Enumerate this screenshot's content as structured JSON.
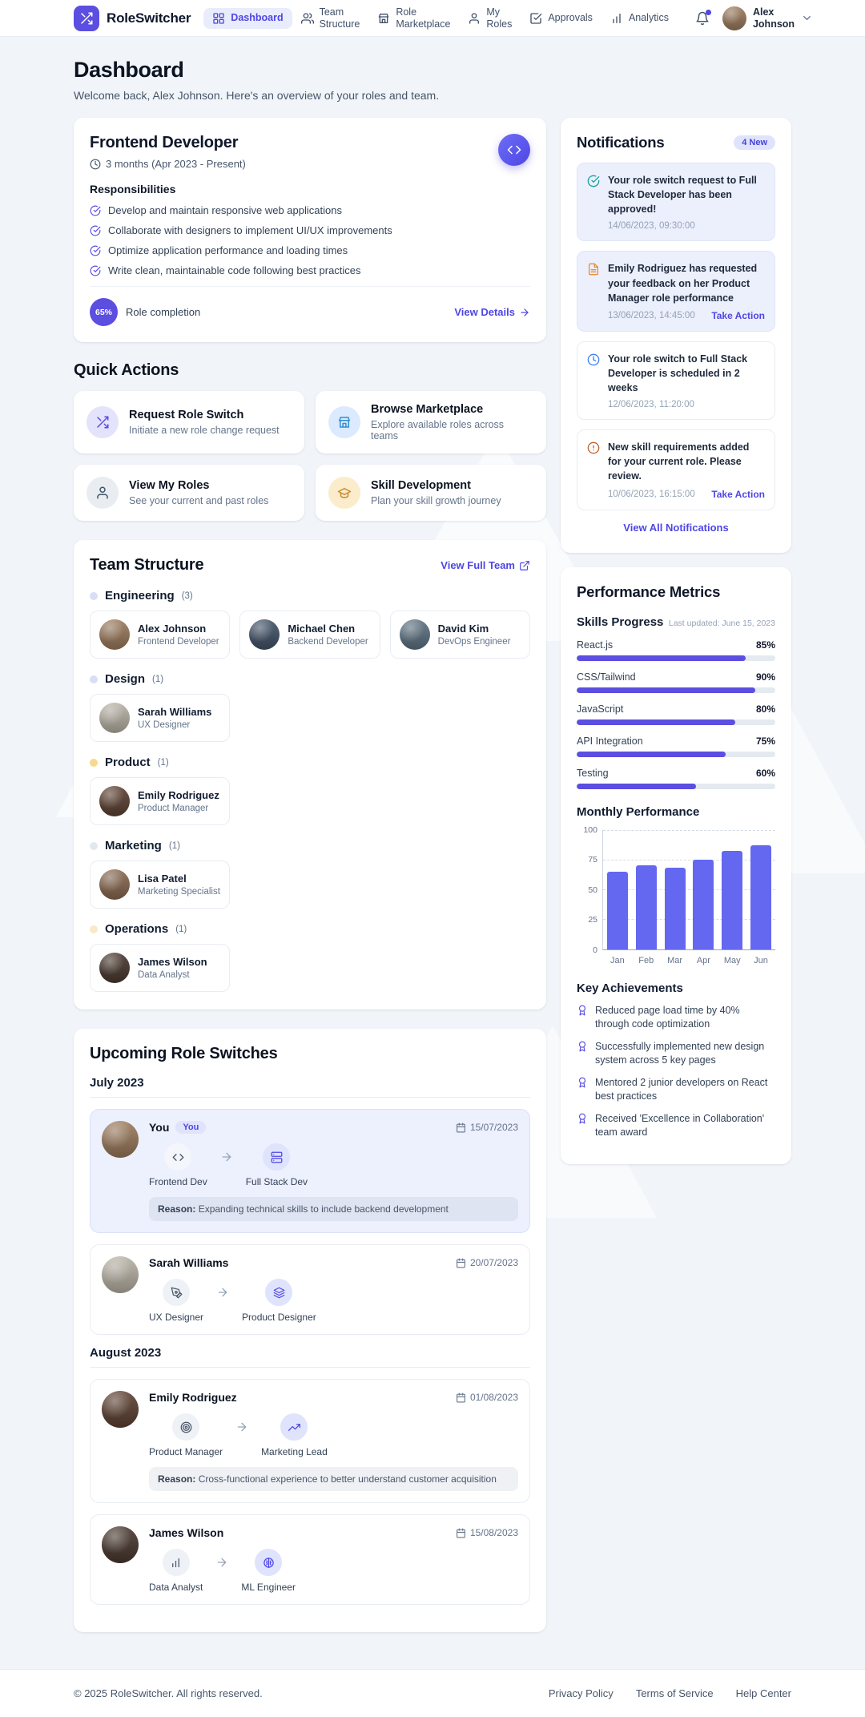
{
  "accent": {
    "primary": "#4f46e5",
    "primary_light": "#eef2ff",
    "progress_fill": "#5b4ee0"
  },
  "brand": {
    "name": "RoleSwitcher",
    "logo_icon": "shuffle"
  },
  "nav": {
    "bell_icon": "bell",
    "chevron_icon": "chevron-down",
    "items": [
      {
        "label": "Dashboard",
        "icon": "grid",
        "active": true
      },
      {
        "label": "Team Structure",
        "icon": "users"
      },
      {
        "label": "Role Marketplace",
        "icon": "store"
      },
      {
        "label": "My Roles",
        "icon": "user"
      },
      {
        "label": "Approvals",
        "icon": "check-square"
      },
      {
        "label": "Analytics",
        "icon": "bar-chart"
      }
    ],
    "user": {
      "name": "Alex Johnson",
      "avatar_color": "#9c7b5d"
    }
  },
  "page": {
    "title": "Dashboard",
    "subtitle": "Welcome back, Alex Johnson. Here's an overview of your roles and team."
  },
  "current_role": {
    "title": "Frontend Developer",
    "duration_icon": "clock",
    "duration": "3 months (Apr 2023 - Present)",
    "header_button_icon": "code",
    "responsibilities_title": "Responsibilities",
    "item_icon": "check-circle",
    "responsibilities": [
      "Develop and maintain responsive web applications",
      "Collaborate with designers to implement UI/UX improvements",
      "Optimize application performance and loading times",
      "Write clean, maintainable code following best practices"
    ],
    "completion_pct": "65%",
    "completion_label": "Role completion",
    "view_details": "View Details",
    "view_details_icon": "arrow-right"
  },
  "quick_actions": {
    "title": "Quick Actions",
    "items": [
      {
        "title": "Request Role Switch",
        "subtitle": "Initiate a new role change request",
        "icon": "shuffle",
        "icon_bg": "#e3e3fb",
        "icon_color": "#5b4ee0"
      },
      {
        "title": "Browse Marketplace",
        "subtitle": "Explore available roles across teams",
        "icon": "store",
        "icon_bg": "#dbeafe",
        "icon_color": "#2e8fd0"
      },
      {
        "title": "View My Roles",
        "subtitle": "See your current and past roles",
        "icon": "user",
        "icon_bg": "#e9edf1",
        "icon_color": "#3f5568"
      },
      {
        "title": "Skill Development",
        "subtitle": "Plan your skill growth journey",
        "icon": "graduation-cap",
        "icon_bg": "#fbeccb",
        "icon_color": "#c9882e"
      }
    ]
  },
  "team_structure": {
    "title": "Team Structure",
    "view_link": "View Full Team",
    "view_link_icon": "external-link",
    "departments": [
      {
        "name": "Engineering",
        "count": "(3)",
        "dot_color": "#d9def8",
        "members": [
          {
            "name": "Alex Johnson",
            "role": "Frontend Developer",
            "avatar_color": "#9c7b5d"
          },
          {
            "name": "Michael Chen",
            "role": "Backend Developer",
            "avatar_color": "#44546a"
          },
          {
            "name": "David Kim",
            "role": "DevOps Engineer",
            "avatar_color": "#5e7384"
          }
        ]
      },
      {
        "name": "Design",
        "count": "(1)",
        "dot_color": "#d9def8",
        "members": [
          {
            "name": "Sarah Williams",
            "role": "UX Designer",
            "avatar_color": "#b9b3a6"
          }
        ]
      },
      {
        "name": "Product",
        "count": "(1)",
        "dot_color": "#f6d98d",
        "members": [
          {
            "name": "Emily Rodriguez",
            "role": "Product Manager",
            "avatar_color": "#5f4234"
          }
        ]
      },
      {
        "name": "Marketing",
        "count": "(1)",
        "dot_color": "#e2e8f0",
        "members": [
          {
            "name": "Lisa Patel",
            "role": "Marketing Specialist",
            "avatar_color": "#8a6a52"
          }
        ]
      },
      {
        "name": "Operations",
        "count": "(1)",
        "dot_color": "#f8e9c8",
        "members": [
          {
            "name": "James Wilson",
            "role": "Data Analyst",
            "avatar_color": "#4a3a30"
          }
        ]
      }
    ]
  },
  "notifications": {
    "title": "Notifications",
    "badge": "4 New",
    "items": [
      {
        "icon": "check-circle",
        "icon_color": "#17a29a",
        "highlighted": true,
        "text": "Your role switch request to Full Stack Developer has been approved!",
        "time": "14/06/2023, 09:30:00"
      },
      {
        "icon": "file-text",
        "icon_color": "#e2903c",
        "highlighted": true,
        "text": "Emily Rodriguez has requested your feedback on her Product Manager role performance",
        "time": "13/06/2023, 14:45:00",
        "action": "Take Action"
      },
      {
        "icon": "clock",
        "icon_color": "#3b82f6",
        "text": "Your role switch to Full Stack Developer is scheduled in 2 weeks",
        "time": "12/06/2023, 11:20:00"
      },
      {
        "icon": "alert-circle",
        "icon_color": "#c2622d",
        "text": "New skill requirements added for your current role. Please review.",
        "time": "10/06/2023, 16:15:00",
        "action": "Take Action"
      }
    ],
    "view_all": "View All Notifications"
  },
  "performance": {
    "title": "Performance Metrics",
    "skills_title": "Skills Progress",
    "last_updated": "Last updated: June 15, 2023",
    "skills": [
      {
        "name": "React.js",
        "pct": 85,
        "pct_label": "85%"
      },
      {
        "name": "CSS/Tailwind",
        "pct": 90,
        "pct_label": "90%"
      },
      {
        "name": "JavaScript",
        "pct": 80,
        "pct_label": "80%"
      },
      {
        "name": "API Integration",
        "pct": 75,
        "pct_label": "75%"
      },
      {
        "name": "Testing",
        "pct": 60,
        "pct_label": "60%"
      }
    ],
    "achievements_title": "Key Achievements",
    "achievement_icon": "award",
    "achievements": [
      "Reduced page load time by 40% through code optimization",
      "Successfully implemented new design system across 5 key pages",
      "Mentored 2 junior developers on React best practices",
      "Received 'Excellence in Collaboration' team award"
    ]
  },
  "chart_data": {
    "type": "bar",
    "title": "Monthly Performance",
    "categories": [
      "Jan",
      "Feb",
      "Mar",
      "Apr",
      "May",
      "Jun"
    ],
    "values": [
      65,
      70,
      68,
      75,
      82,
      87
    ],
    "yticks": [
      0,
      25,
      50,
      75,
      100
    ],
    "ylim": [
      0,
      100
    ],
    "xlabel": "",
    "ylabel": "",
    "grid": "dashed-horizontal",
    "legend": "none",
    "bar_color": "#6468f0"
  },
  "upcoming": {
    "title": "Upcoming Role Switches",
    "date_icon": "calendar",
    "arrow_icon": "arrow-right",
    "groups": [
      {
        "month": "July 2023",
        "switches": [
          {
            "name": "You",
            "badge": "You",
            "highlighted": true,
            "avatar_color": "#9c7b5d",
            "date": "15/07/2023",
            "from_role": "Frontend Dev",
            "from_icon": "code",
            "to_role": "Full Stack Dev",
            "to_icon": "server",
            "reason_label": "Reason:",
            "reason": "Expanding technical skills to include backend development"
          },
          {
            "name": "Sarah Williams",
            "avatar_color": "#b9b3a6",
            "date": "20/07/2023",
            "from_role": "UX Designer",
            "from_icon": "pen-tool",
            "to_role": "Product Designer",
            "to_icon": "layers"
          }
        ]
      },
      {
        "month": "August 2023",
        "switches": [
          {
            "name": "Emily Rodriguez",
            "avatar_color": "#5f4234",
            "date": "01/08/2023",
            "from_role": "Product Manager",
            "from_icon": "target",
            "to_role": "Marketing Lead",
            "to_icon": "trending-up",
            "reason_label": "Reason:",
            "reason": "Cross-functional experience to better understand customer acquisition"
          },
          {
            "name": "James Wilson",
            "avatar_color": "#4a3a30",
            "date": "15/08/2023",
            "from_role": "Data Analyst",
            "from_icon": "bar-chart",
            "to_role": "ML Engineer",
            "to_icon": "brain"
          }
        ]
      }
    ]
  },
  "footer": {
    "copyright": "© 2025 RoleSwitcher. All rights reserved.",
    "links": [
      "Privacy Policy",
      "Terms of Service",
      "Help Center"
    ]
  }
}
